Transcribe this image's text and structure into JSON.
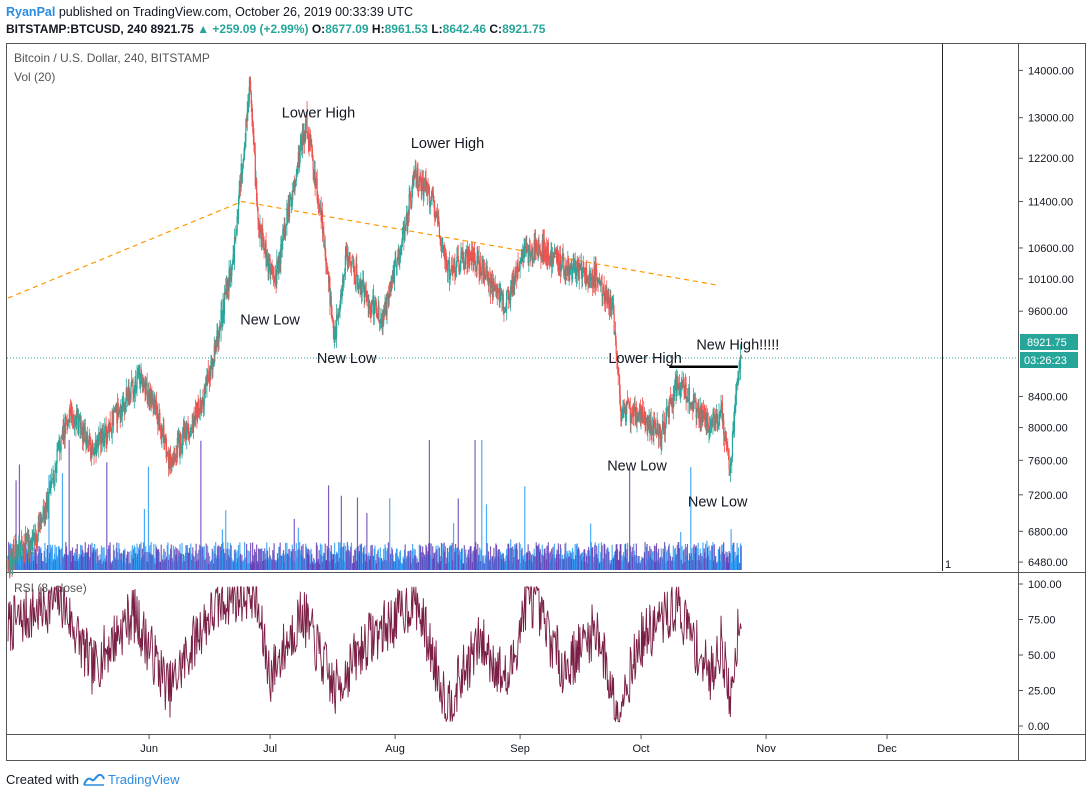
{
  "header": {
    "author": "RyanPal",
    "published_text": "published on TradingView.com, October 26, 2019 00:33:39 UTC",
    "symbol": "BITSTAMP:BTCUSD, 240",
    "last": "8921.75",
    "change": "+259.09 (+2.99%)",
    "o_label": "O:",
    "o": "8677.09",
    "h_label": "H:",
    "h": "8961.53",
    "l_label": "L:",
    "l": "8642.46",
    "c_label": "C:",
    "c": "8921.75"
  },
  "chart": {
    "title": "Bitcoin / U.S. Dollar, 240, BITSTAMP",
    "volume_label": "Vol (20)",
    "rsi_label": "RSI (8, close)",
    "price_badge": "8921.75",
    "countdown_badge": "03:26:23",
    "pane_marker": "1"
  },
  "annotations": [
    {
      "text": "Lower High",
      "date": "2019-07-13",
      "price": 13000
    },
    {
      "text": "Lower High",
      "date": "2019-08-14",
      "price": 12400
    },
    {
      "text": "New Low",
      "date": "2019-07-01",
      "price": 9400
    },
    {
      "text": "New Low",
      "date": "2019-07-20",
      "price": 8850
    },
    {
      "text": "Lower High",
      "date": "2019-10-02",
      "price": 8850
    },
    {
      "text": "New High!!!!!",
      "date": "2019-10-25",
      "price": 9040
    },
    {
      "text": "New Low",
      "date": "2019-09-30",
      "price": 7480
    },
    {
      "text": "New Low",
      "date": "2019-10-20",
      "price": 7070
    }
  ],
  "footer": {
    "created_with": "Created with",
    "brand": "TradingView"
  },
  "colors": {
    "up": "#26a69a",
    "down": "#ef5350",
    "trendline": "#ff9800",
    "rsi": "#7b1e45",
    "volume": "#2196f3",
    "price_line": "#26a69a",
    "axis_text": "#131722"
  },
  "chart_data": {
    "type": "candlestick",
    "title": "Bitcoin / U.S. Dollar, 240, BITSTAMP",
    "x_range": [
      "2019-04-27",
      "2019-12-31"
    ],
    "x_ticks": [
      "Jun",
      "Jul",
      "Aug",
      "Sep",
      "Oct",
      "Nov",
      "Dec"
    ],
    "y_scale": "log",
    "y_range": [
      6400,
      14500
    ],
    "y_ticks": [
      "14000.00",
      "13000.00",
      "12200.00",
      "11400.00",
      "10600.00",
      "10100.00",
      "9600.00",
      "8400.00",
      "8000.00",
      "7600.00",
      "7200.00",
      "6800.00",
      "6480.00"
    ],
    "rsi_ticks": [
      "100.00",
      "75.00",
      "50.00",
      "25.00",
      "0.00"
    ],
    "last_price": 8921.75,
    "grid": false,
    "price_keypoints": [
      {
        "date": "2019-04-27",
        "price": 6500
      },
      {
        "date": "2019-05-05",
        "price": 6800
      },
      {
        "date": "2019-05-12",
        "price": 8200
      },
      {
        "date": "2019-05-14",
        "price": 8100
      },
      {
        "date": "2019-05-18",
        "price": 7700
      },
      {
        "date": "2019-05-22",
        "price": 8000
      },
      {
        "date": "2019-05-30",
        "price": 8700
      },
      {
        "date": "2019-06-03",
        "price": 8200
      },
      {
        "date": "2019-06-06",
        "price": 7600
      },
      {
        "date": "2019-06-10",
        "price": 7900
      },
      {
        "date": "2019-06-14",
        "price": 8300
      },
      {
        "date": "2019-06-18",
        "price": 9200
      },
      {
        "date": "2019-06-22",
        "price": 10500
      },
      {
        "date": "2019-06-26",
        "price": 13800
      },
      {
        "date": "2019-06-28",
        "price": 11000
      },
      {
        "date": "2019-07-02",
        "price": 10000
      },
      {
        "date": "2019-07-06",
        "price": 11400
      },
      {
        "date": "2019-07-10",
        "price": 12900
      },
      {
        "date": "2019-07-14",
        "price": 11000
      },
      {
        "date": "2019-07-17",
        "price": 9200
      },
      {
        "date": "2019-07-20",
        "price": 10500
      },
      {
        "date": "2019-07-25",
        "price": 9800
      },
      {
        "date": "2019-07-29",
        "price": 9500
      },
      {
        "date": "2019-08-02",
        "price": 10500
      },
      {
        "date": "2019-08-06",
        "price": 11900
      },
      {
        "date": "2019-08-10",
        "price": 11500
      },
      {
        "date": "2019-08-14",
        "price": 10200
      },
      {
        "date": "2019-08-20",
        "price": 10500
      },
      {
        "date": "2019-08-28",
        "price": 9700
      },
      {
        "date": "2019-09-02",
        "price": 10500
      },
      {
        "date": "2019-09-06",
        "price": 10600
      },
      {
        "date": "2019-09-12",
        "price": 10300
      },
      {
        "date": "2019-09-20",
        "price": 10100
      },
      {
        "date": "2019-09-24",
        "price": 9600
      },
      {
        "date": "2019-09-26",
        "price": 8200
      },
      {
        "date": "2019-09-30",
        "price": 8200
      },
      {
        "date": "2019-10-06",
        "price": 7900
      },
      {
        "date": "2019-10-10",
        "price": 8600
      },
      {
        "date": "2019-10-14",
        "price": 8300
      },
      {
        "date": "2019-10-18",
        "price": 8000
      },
      {
        "date": "2019-10-21",
        "price": 8200
      },
      {
        "date": "2019-10-23",
        "price": 7500
      },
      {
        "date": "2019-10-25",
        "price": 8600
      },
      {
        "date": "2019-10-26",
        "price": 8921.75
      }
    ],
    "resistance_trendline": [
      {
        "date": "2019-04-27",
        "price": 9800
      },
      {
        "date": "2019-06-24",
        "price": 11400
      },
      {
        "date": "2019-10-20",
        "price": 10000
      }
    ],
    "breakout_level": {
      "from": "2019-10-08",
      "to": "2019-10-25",
      "price": 8800
    },
    "rsi_keypoints": [
      {
        "date": "2019-04-27",
        "value": 70
      },
      {
        "date": "2019-05-10",
        "value": 90
      },
      {
        "date": "2019-05-18",
        "value": 40
      },
      {
        "date": "2019-05-28",
        "value": 80
      },
      {
        "date": "2019-06-06",
        "value": 25
      },
      {
        "date": "2019-06-14",
        "value": 70
      },
      {
        "date": "2019-06-20",
        "value": 90
      },
      {
        "date": "2019-06-27",
        "value": 95
      },
      {
        "date": "2019-07-01",
        "value": 35
      },
      {
        "date": "2019-07-09",
        "value": 80
      },
      {
        "date": "2019-07-17",
        "value": 25
      },
      {
        "date": "2019-07-25",
        "value": 60
      },
      {
        "date": "2019-08-01",
        "value": 75
      },
      {
        "date": "2019-08-06",
        "value": 90
      },
      {
        "date": "2019-08-14",
        "value": 15
      },
      {
        "date": "2019-08-22",
        "value": 60
      },
      {
        "date": "2019-08-29",
        "value": 30
      },
      {
        "date": "2019-09-03",
        "value": 95
      },
      {
        "date": "2019-09-12",
        "value": 40
      },
      {
        "date": "2019-09-20",
        "value": 70
      },
      {
        "date": "2019-09-25",
        "value": 10
      },
      {
        "date": "2019-10-01",
        "value": 60
      },
      {
        "date": "2019-10-10",
        "value": 85
      },
      {
        "date": "2019-10-18",
        "value": 35
      },
      {
        "date": "2019-10-21",
        "value": 60
      },
      {
        "date": "2019-10-23",
        "value": 15
      },
      {
        "date": "2019-10-26",
        "value": 92
      }
    ]
  }
}
